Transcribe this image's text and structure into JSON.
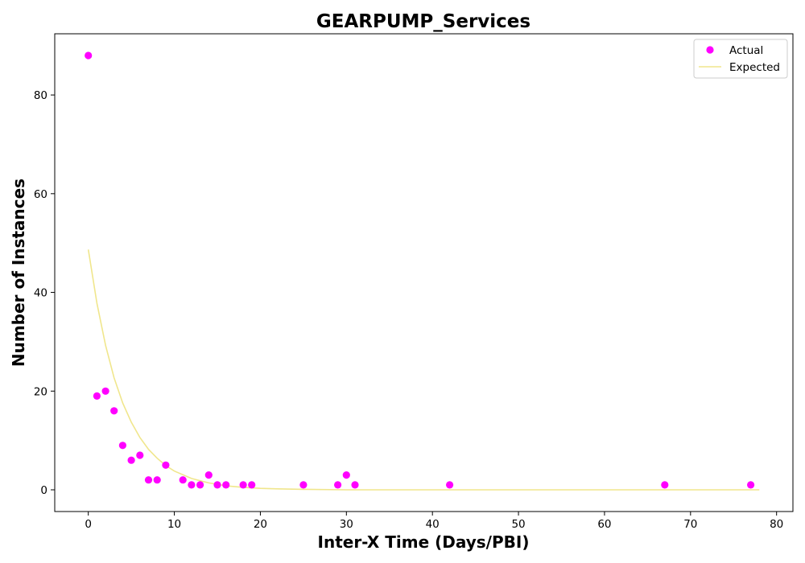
{
  "chart_data": {
    "type": "scatter",
    "title": "GEARPUMP_Services",
    "xlabel": "Inter-X Time (Days/PBI)",
    "ylabel": "Number of Instances",
    "xlim": [
      -3.9,
      81.9
    ],
    "ylim": [
      -4.4,
      92.4
    ],
    "xticks": [
      0,
      10,
      20,
      30,
      40,
      50,
      60,
      70,
      80
    ],
    "yticks": [
      0,
      20,
      40,
      60,
      80
    ],
    "grid": false,
    "legend": {
      "placement": "top-right",
      "entries": [
        "Actual",
        "Expected"
      ]
    },
    "colors": {
      "actual": "#ff00ff",
      "expected": "#f0e68c"
    },
    "series": [
      {
        "name": "Actual",
        "kind": "scatter",
        "x": [
          0,
          1,
          2,
          3,
          4,
          5,
          6,
          7,
          8,
          9,
          11,
          12,
          13,
          14,
          15,
          16,
          18,
          19,
          25,
          29,
          30,
          31,
          42,
          67,
          77
        ],
        "y": [
          88,
          19,
          20,
          16,
          9,
          6,
          7,
          2,
          2,
          5,
          2,
          1,
          1,
          3,
          1,
          1,
          1,
          1,
          1,
          1,
          3,
          1,
          1,
          1,
          1
        ]
      },
      {
        "name": "Expected",
        "kind": "line",
        "x": [
          0,
          1,
          2,
          3,
          4,
          5,
          6,
          7,
          8,
          9,
          10,
          12,
          14,
          16,
          18,
          20,
          22,
          25,
          30,
          40,
          50,
          60,
          70,
          78
        ],
        "y": [
          48.7,
          37.8,
          29.3,
          22.7,
          17.6,
          13.7,
          10.6,
          8.2,
          6.4,
          4.9,
          3.8,
          2.3,
          1.4,
          0.8,
          0.5,
          0.3,
          0.2,
          0.1,
          0.0,
          0.0,
          0.0,
          0.0,
          0.0,
          0.0
        ]
      }
    ]
  }
}
